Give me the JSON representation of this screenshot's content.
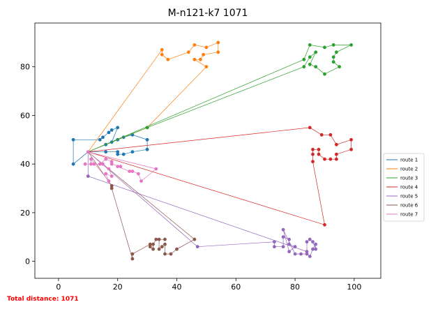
{
  "chart_data": {
    "type": "line",
    "title": "M-n121-k7 1071",
    "xlim": [
      -8,
      109
    ],
    "ylim": [
      -7,
      98
    ],
    "xticks": [
      0,
      20,
      40,
      60,
      80,
      100
    ],
    "yticks": [
      0,
      20,
      40,
      60,
      80
    ],
    "legend_position": "right",
    "depot": [
      10,
      45
    ],
    "series": [
      {
        "name": "route 1",
        "color": "#1f77b4",
        "points": [
          [
            10,
            45
          ],
          [
            5,
            40
          ],
          [
            5,
            50
          ],
          [
            14,
            50
          ],
          [
            15,
            51
          ],
          [
            17,
            53
          ],
          [
            18,
            54
          ],
          [
            20,
            55
          ],
          [
            18,
            49
          ],
          [
            16,
            48
          ],
          [
            20,
            50
          ],
          [
            22,
            51
          ],
          [
            25,
            52
          ],
          [
            30,
            50
          ],
          [
            30,
            46
          ],
          [
            25,
            45
          ],
          [
            22,
            44
          ],
          [
            20,
            44
          ],
          [
            20,
            45
          ],
          [
            16,
            45
          ],
          [
            10,
            45
          ]
        ]
      },
      {
        "name": "route 2",
        "color": "#ff7f0e",
        "points": [
          [
            10,
            45
          ],
          [
            35,
            87
          ],
          [
            35,
            85
          ],
          [
            37,
            83
          ],
          [
            44,
            86
          ],
          [
            46,
            89
          ],
          [
            50,
            88
          ],
          [
            54,
            90
          ],
          [
            54,
            86
          ],
          [
            49,
            85
          ],
          [
            48,
            83
          ],
          [
            46,
            83
          ],
          [
            50,
            80
          ],
          [
            30,
            55
          ],
          [
            10,
            45
          ]
        ]
      },
      {
        "name": "route 3",
        "color": "#2ca02c",
        "points": [
          [
            10,
            45
          ],
          [
            83,
            83
          ],
          [
            85,
            89
          ],
          [
            90,
            88
          ],
          [
            93,
            89
          ],
          [
            99,
            89
          ],
          [
            94,
            86
          ],
          [
            93,
            84
          ],
          [
            93,
            82
          ],
          [
            95,
            80
          ],
          [
            90,
            77
          ],
          [
            87,
            80
          ],
          [
            85,
            81
          ],
          [
            87,
            86
          ],
          [
            85,
            84
          ],
          [
            83,
            80
          ],
          [
            30,
            55
          ],
          [
            10,
            45
          ]
        ]
      },
      {
        "name": "route 4",
        "color": "#d62728",
        "points": [
          [
            10,
            45
          ],
          [
            85,
            55
          ],
          [
            89,
            52
          ],
          [
            92,
            52
          ],
          [
            94,
            48
          ],
          [
            99,
            50
          ],
          [
            99,
            46
          ],
          [
            94,
            44
          ],
          [
            94,
            42
          ],
          [
            92,
            42
          ],
          [
            90,
            42
          ],
          [
            88,
            44
          ],
          [
            88,
            46
          ],
          [
            86,
            46
          ],
          [
            86,
            44
          ],
          [
            86,
            41
          ],
          [
            90,
            15
          ],
          [
            10,
            45
          ]
        ]
      },
      {
        "name": "route 5",
        "color": "#9467bd",
        "points": [
          [
            10,
            45
          ],
          [
            47,
            6
          ],
          [
            73,
            8
          ],
          [
            73,
            6
          ],
          [
            76,
            6
          ],
          [
            76,
            10
          ],
          [
            78,
            9
          ],
          [
            78,
            7
          ],
          [
            80,
            6
          ],
          [
            78,
            4
          ],
          [
            76,
            13
          ],
          [
            80,
            3
          ],
          [
            82,
            3
          ],
          [
            84,
            3
          ],
          [
            85,
            2
          ],
          [
            86,
            5
          ],
          [
            87,
            7
          ],
          [
            87,
            5
          ],
          [
            86,
            8
          ],
          [
            85,
            9
          ],
          [
            84,
            8
          ],
          [
            84,
            4
          ],
          [
            10,
            35
          ],
          [
            10,
            45
          ]
        ]
      },
      {
        "name": "route 6",
        "color": "#8c564b",
        "points": [
          [
            10,
            45
          ],
          [
            46,
            9
          ],
          [
            40,
            5
          ],
          [
            38,
            3
          ],
          [
            36,
            3
          ],
          [
            36,
            7
          ],
          [
            35,
            6
          ],
          [
            34,
            5
          ],
          [
            34,
            9
          ],
          [
            36,
            9
          ],
          [
            33,
            9
          ],
          [
            32,
            7
          ],
          [
            32,
            5
          ],
          [
            31,
            6
          ],
          [
            31,
            7
          ],
          [
            25,
            3
          ],
          [
            25,
            1
          ],
          [
            18,
            30
          ],
          [
            18,
            31
          ],
          [
            10,
            45
          ]
        ]
      },
      {
        "name": "route 7",
        "color": "#e377c2",
        "points": [
          [
            10,
            45
          ],
          [
            15,
            40
          ],
          [
            17,
            38
          ],
          [
            18,
            35
          ],
          [
            16,
            36
          ],
          [
            17,
            33
          ],
          [
            11,
            42
          ],
          [
            11,
            40
          ],
          [
            9,
            40
          ],
          [
            12,
            40
          ],
          [
            14,
            40
          ],
          [
            16,
            42
          ],
          [
            18,
            41
          ],
          [
            18,
            40
          ],
          [
            21,
            39
          ],
          [
            20,
            39
          ],
          [
            24,
            37
          ],
          [
            25,
            37
          ],
          [
            27,
            36
          ],
          [
            28,
            33
          ],
          [
            33,
            38
          ],
          [
            10,
            45
          ]
        ]
      }
    ]
  },
  "footer": {
    "text": "Total distance: 1071",
    "color": "#ff0000"
  }
}
